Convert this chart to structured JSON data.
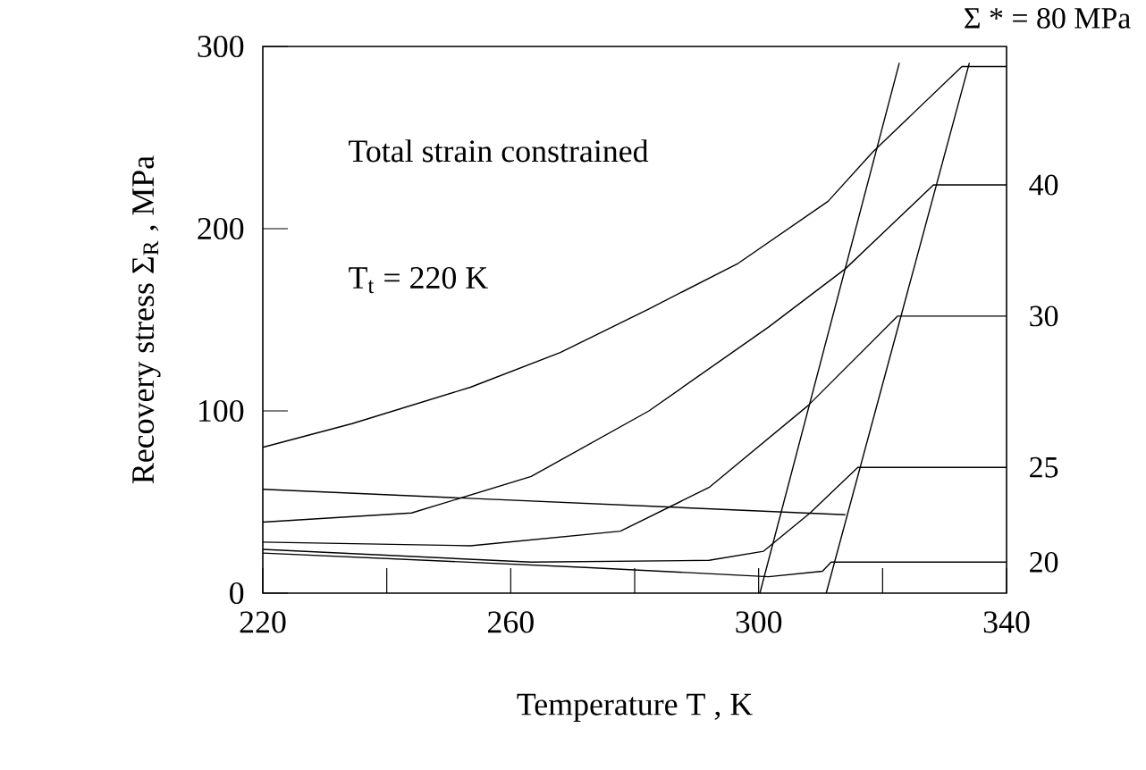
{
  "chart_data": {
    "type": "line",
    "xlabel": "Temperature  T ,  K",
    "ylabel": "Recovery stress  Σ$_{R}$ ,  MPa",
    "annotations": [
      "Total strain constrained",
      "T$_{t}$ = 220 K"
    ],
    "xlim": [
      220,
      340
    ],
    "ylim": [
      0,
      300
    ],
    "xticks": [
      220,
      {
        "value": 240,
        "label": null
      },
      260,
      {
        "value": 280,
        "label": null
      },
      300,
      {
        "value": 320,
        "label": null
      },
      340
    ],
    "yticks": [
      0,
      100,
      200,
      300
    ],
    "grid": false,
    "legend": "right",
    "marker": "none",
    "line_style": "solid",
    "series": [
      {
        "name": "Σ * = 80 MPa",
        "color": "#000000",
        "x": [
          220,
          234.4,
          253.5,
          268,
          282.3,
          296.7,
          311.2,
          318.4,
          332.8,
          340
        ],
        "values": [
          80,
          93,
          113,
          132,
          156,
          181,
          215,
          242,
          289,
          289
        ]
      },
      {
        "name": "40",
        "color": "#000000",
        "x": [
          220,
          244,
          263.3,
          282.3,
          301.6,
          314,
          328.2,
          340
        ],
        "values": [
          39,
          44,
          64,
          100,
          146,
          178,
          224,
          224
        ]
      },
      {
        "name": "30",
        "color": "#000000",
        "x": [
          220,
          253.5,
          277.7,
          292,
          308,
          322.4,
          340
        ],
        "values": [
          28,
          26,
          34,
          58,
          103,
          152,
          152
        ]
      },
      {
        "name": "25",
        "color": "#000000",
        "x": [
          220,
          263.3,
          292,
          300.8,
          308.3,
          316,
          340
        ],
        "values": [
          24,
          17,
          18,
          23,
          44,
          69,
          69
        ]
      },
      {
        "name": "20",
        "color": "#000000",
        "x": [
          220,
          272.8,
          301.6,
          310.3,
          311.7,
          340
        ],
        "values": [
          22,
          14,
          9,
          12,
          17,
          17
        ]
      },
      {
        "color": "#000000",
        "x": [
          220,
          314
        ],
        "values": [
          57,
          43
        ]
      },
      {
        "color": "#000000",
        "x": [
          300.2,
          322.7
        ],
        "values": [
          0,
          291
        ]
      },
      {
        "color": "#000000",
        "x": [
          310.9,
          334
        ],
        "values": [
          0,
          291
        ]
      }
    ]
  }
}
